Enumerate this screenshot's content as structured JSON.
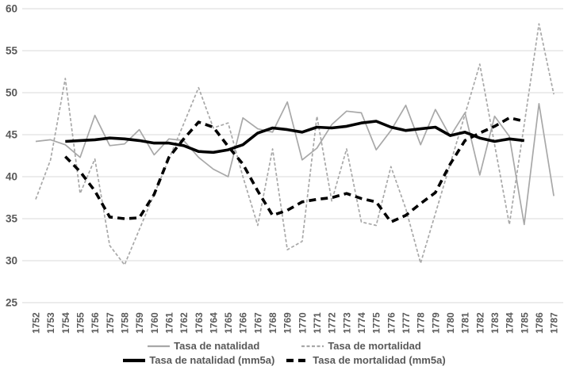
{
  "chart_data": {
    "type": "line",
    "title": "",
    "xlabel": "",
    "ylabel": "",
    "x": [
      1752,
      1753,
      1754,
      1755,
      1756,
      1757,
      1758,
      1759,
      1760,
      1761,
      1762,
      1763,
      1764,
      1765,
      1766,
      1767,
      1768,
      1769,
      1770,
      1771,
      1772,
      1773,
      1774,
      1775,
      1776,
      1777,
      1778,
      1779,
      1780,
      1781,
      1782,
      1783,
      1784,
      1785,
      1786,
      1787
    ],
    "ylim": [
      25,
      60
    ],
    "ytick_step": 5,
    "yticks": [
      25,
      30,
      35,
      40,
      45,
      50,
      55,
      60
    ],
    "grid": "horizontal",
    "gridline_color": "#d9d9d9",
    "axis_text_color": "#595959",
    "legend_position": "bottom",
    "series": [
      {
        "name": "Tasa de natalidad",
        "color": "#a8a8a8",
        "width": 1.7,
        "dash": "",
        "values": [
          44.2,
          44.4,
          43.8,
          42.3,
          47.3,
          43.7,
          43.9,
          45.6,
          42.6,
          44.5,
          44.3,
          42.3,
          40.9,
          40.0,
          47.0,
          45.7,
          45.3,
          48.9,
          42.0,
          43.4,
          46.2,
          47.8,
          47.6,
          43.2,
          45.5,
          48.5,
          43.8,
          48.0,
          44.8,
          47.6,
          40.2,
          47.2,
          44.8,
          34.3,
          48.7,
          37.7
        ]
      },
      {
        "name": "Tasa de mortalidad",
        "color": "#a8a8a8",
        "width": 1.7,
        "dash": "4 2.5",
        "values": [
          37.3,
          42.0,
          51.7,
          38.0,
          42.1,
          31.8,
          29.5,
          33.7,
          37.9,
          42.1,
          46.3,
          50.6,
          45.8,
          46.4,
          40.0,
          34.2,
          43.3,
          31.3,
          32.3,
          47.2,
          37.1,
          43.3,
          34.6,
          34.2,
          41.2,
          36.2,
          29.7,
          35.6,
          41.5,
          47.4,
          53.4,
          43.8,
          34.3,
          46.2,
          58.2,
          49.8
        ]
      },
      {
        "name": "Tasa de natalidad (mm5a)",
        "color": "#000000",
        "width": 3.6,
        "dash": "",
        "values": [
          null,
          null,
          44.2,
          44.3,
          44.4,
          44.6,
          44.5,
          44.3,
          44.0,
          44.0,
          43.7,
          43.0,
          42.9,
          43.2,
          43.8,
          45.2,
          45.8,
          45.6,
          45.3,
          45.9,
          45.8,
          46.0,
          46.4,
          46.6,
          45.9,
          45.5,
          45.7,
          45.9,
          44.9,
          45.3,
          44.6,
          44.2,
          44.5,
          44.3,
          null,
          null
        ]
      },
      {
        "name": "Tasa de mortalidad (mm5a)",
        "color": "#000000",
        "width": 3.6,
        "dash": "9 6",
        "values": [
          null,
          null,
          42.4,
          40.6,
          38.3,
          35.2,
          35.0,
          35.1,
          37.9,
          42.3,
          44.5,
          46.5,
          45.9,
          43.6,
          41.5,
          38.3,
          35.4,
          36.0,
          37.0,
          37.3,
          37.5,
          38.0,
          37.4,
          37.0,
          34.6,
          35.4,
          36.8,
          38.1,
          41.5,
          44.3,
          45.2,
          46.0,
          47.0,
          46.6,
          null,
          null
        ]
      }
    ]
  }
}
